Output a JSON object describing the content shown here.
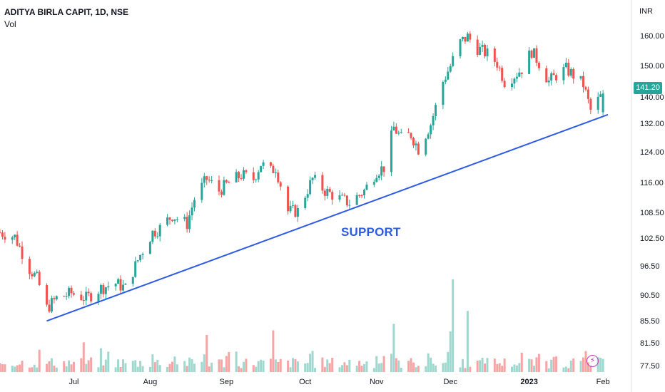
{
  "header": {
    "title": "ADITYA BIRLA CAPIT, 1D, NSE",
    "volume_label": "Vol"
  },
  "axis": {
    "unit": "INR",
    "last_price_label": "141.20"
  },
  "annotation": {
    "text": "SUPPORT"
  },
  "colors": {
    "up": "#26a69a",
    "down": "#ef5350",
    "vol_up": "#9fd8cf",
    "vol_down": "#f5a5a4",
    "support_line": "#2d5be3",
    "annotation": "#2d5be3",
    "price_badge": "#26a69a",
    "bolt": "#b83fb5"
  },
  "icons": {
    "alert": "lightning-icon"
  },
  "chart_data": {
    "type": "candlestick",
    "title": "ADITYA BIRLA CAPIT, 1D, NSE",
    "ylabel": "INR",
    "ylim": [
      76.5,
      166
    ],
    "y_scale": "log",
    "y_ticks": [
      "160.00",
      "150.00",
      "140.00",
      "132.00",
      "124.00",
      "116.00",
      "108.50",
      "102.50",
      "96.50",
      "90.50",
      "85.50",
      "81.50",
      "77.50"
    ],
    "x_ticks": [
      {
        "label": "Jul",
        "date": "2022-07-01"
      },
      {
        "label": "Aug",
        "date": "2022-08-01"
      },
      {
        "label": "Sep",
        "date": "2022-09-01"
      },
      {
        "label": "Oct",
        "date": "2022-10-03"
      },
      {
        "label": "Nov",
        "date": "2022-11-01"
      },
      {
        "label": "Dec",
        "date": "2022-12-01"
      },
      {
        "label": "2023",
        "date": "2023-01-02"
      },
      {
        "label": "Feb",
        "date": "2023-02-01"
      }
    ],
    "x_range": [
      "2022-06-01",
      "2023-02-03"
    ],
    "last_price": 141.2,
    "support_line": {
      "label": "SUPPORT",
      "points": [
        {
          "date": "2022-06-20",
          "price": 85.6
        },
        {
          "date": "2023-02-03",
          "price": 134.8
        }
      ]
    },
    "close_path": [
      [
        "2022-06-01",
        104
      ],
      [
        "2022-06-07",
        103
      ],
      [
        "2022-06-13",
        96
      ],
      [
        "2022-06-16",
        94
      ],
      [
        "2022-06-20",
        88
      ],
      [
        "2022-06-24",
        90
      ],
      [
        "2022-06-30",
        91
      ],
      [
        "2022-07-06",
        90
      ],
      [
        "2022-07-12",
        92
      ],
      [
        "2022-07-18",
        93
      ],
      [
        "2022-07-22",
        92
      ],
      [
        "2022-07-28",
        99
      ],
      [
        "2022-08-02",
        104
      ],
      [
        "2022-08-05",
        105
      ],
      [
        "2022-08-10",
        108
      ],
      [
        "2022-08-16",
        106
      ],
      [
        "2022-08-19",
        112
      ],
      [
        "2022-08-24",
        117
      ],
      [
        "2022-08-29",
        114
      ],
      [
        "2022-09-02",
        116
      ],
      [
        "2022-09-07",
        118
      ],
      [
        "2022-09-12",
        117
      ],
      [
        "2022-09-15",
        121
      ],
      [
        "2022-09-19",
        119
      ],
      [
        "2022-09-21",
        120
      ],
      [
        "2022-09-26",
        109
      ],
      [
        "2022-09-30",
        109
      ],
      [
        "2022-10-06",
        117
      ],
      [
        "2022-10-11",
        114
      ],
      [
        "2022-10-17",
        112
      ],
      [
        "2022-10-21",
        111
      ],
      [
        "2022-10-27",
        114
      ],
      [
        "2022-11-01",
        119
      ],
      [
        "2022-11-04",
        120
      ],
      [
        "2022-11-08",
        131
      ],
      [
        "2022-11-11",
        128
      ],
      [
        "2022-11-15",
        129
      ],
      [
        "2022-11-18",
        125
      ],
      [
        "2022-11-23",
        132
      ],
      [
        "2022-11-25",
        137
      ],
      [
        "2022-11-28",
        145
      ],
      [
        "2022-12-01",
        150
      ],
      [
        "2022-12-05",
        158
      ],
      [
        "2022-12-08",
        160
      ],
      [
        "2022-12-12",
        156
      ],
      [
        "2022-12-16",
        154
      ],
      [
        "2022-12-20",
        151
      ],
      [
        "2022-12-23",
        145
      ],
      [
        "2022-12-27",
        147
      ],
      [
        "2022-12-30",
        149
      ],
      [
        "2023-01-03",
        155
      ],
      [
        "2023-01-06",
        151
      ],
      [
        "2023-01-10",
        145
      ],
      [
        "2023-01-13",
        147
      ],
      [
        "2023-01-17",
        149
      ],
      [
        "2023-01-20",
        147
      ],
      [
        "2023-01-24",
        144
      ],
      [
        "2023-01-27",
        136
      ],
      [
        "2023-02-01",
        141.2
      ]
    ],
    "volume_bars": [
      {
        "date": "2022-12-02",
        "relative": 1.0
      },
      {
        "date": "2022-12-08",
        "relative": 0.66
      },
      {
        "date": "2022-11-08",
        "relative": 0.52
      },
      {
        "date": "2022-09-20",
        "relative": 0.45
      },
      {
        "date": "2022-12-01",
        "relative": 0.44
      },
      {
        "date": "2022-07-05",
        "relative": 0.32
      },
      {
        "date": "2022-08-24",
        "relative": 0.4
      }
    ]
  }
}
